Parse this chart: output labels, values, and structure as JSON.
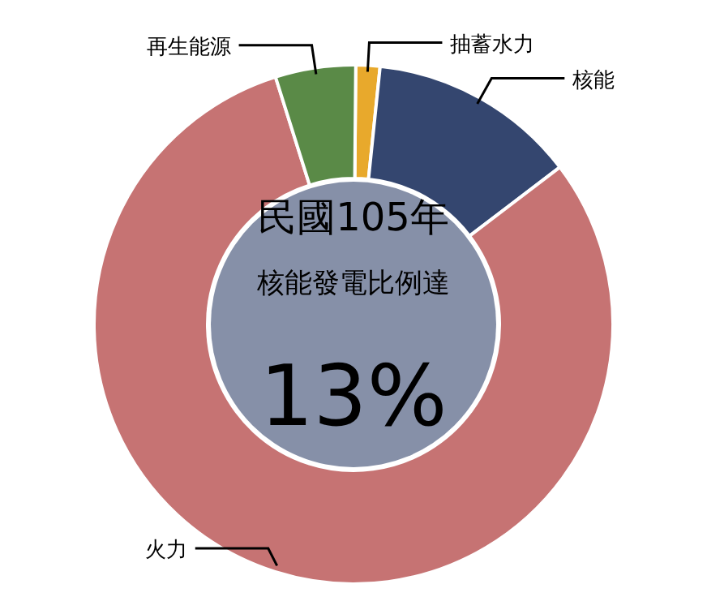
{
  "chart_data": {
    "type": "donut",
    "title": "民國105年",
    "annotations": [
      "核能發電比例達",
      "13%"
    ],
    "categories": [
      "抽蓄水力",
      "核能",
      "火力",
      "再生能源"
    ],
    "values": [
      1.5,
      13,
      80.5,
      5
    ],
    "colors": [
      "#e8a92c",
      "#34466f",
      "#c67373",
      "#5a8a47"
    ]
  }
}
